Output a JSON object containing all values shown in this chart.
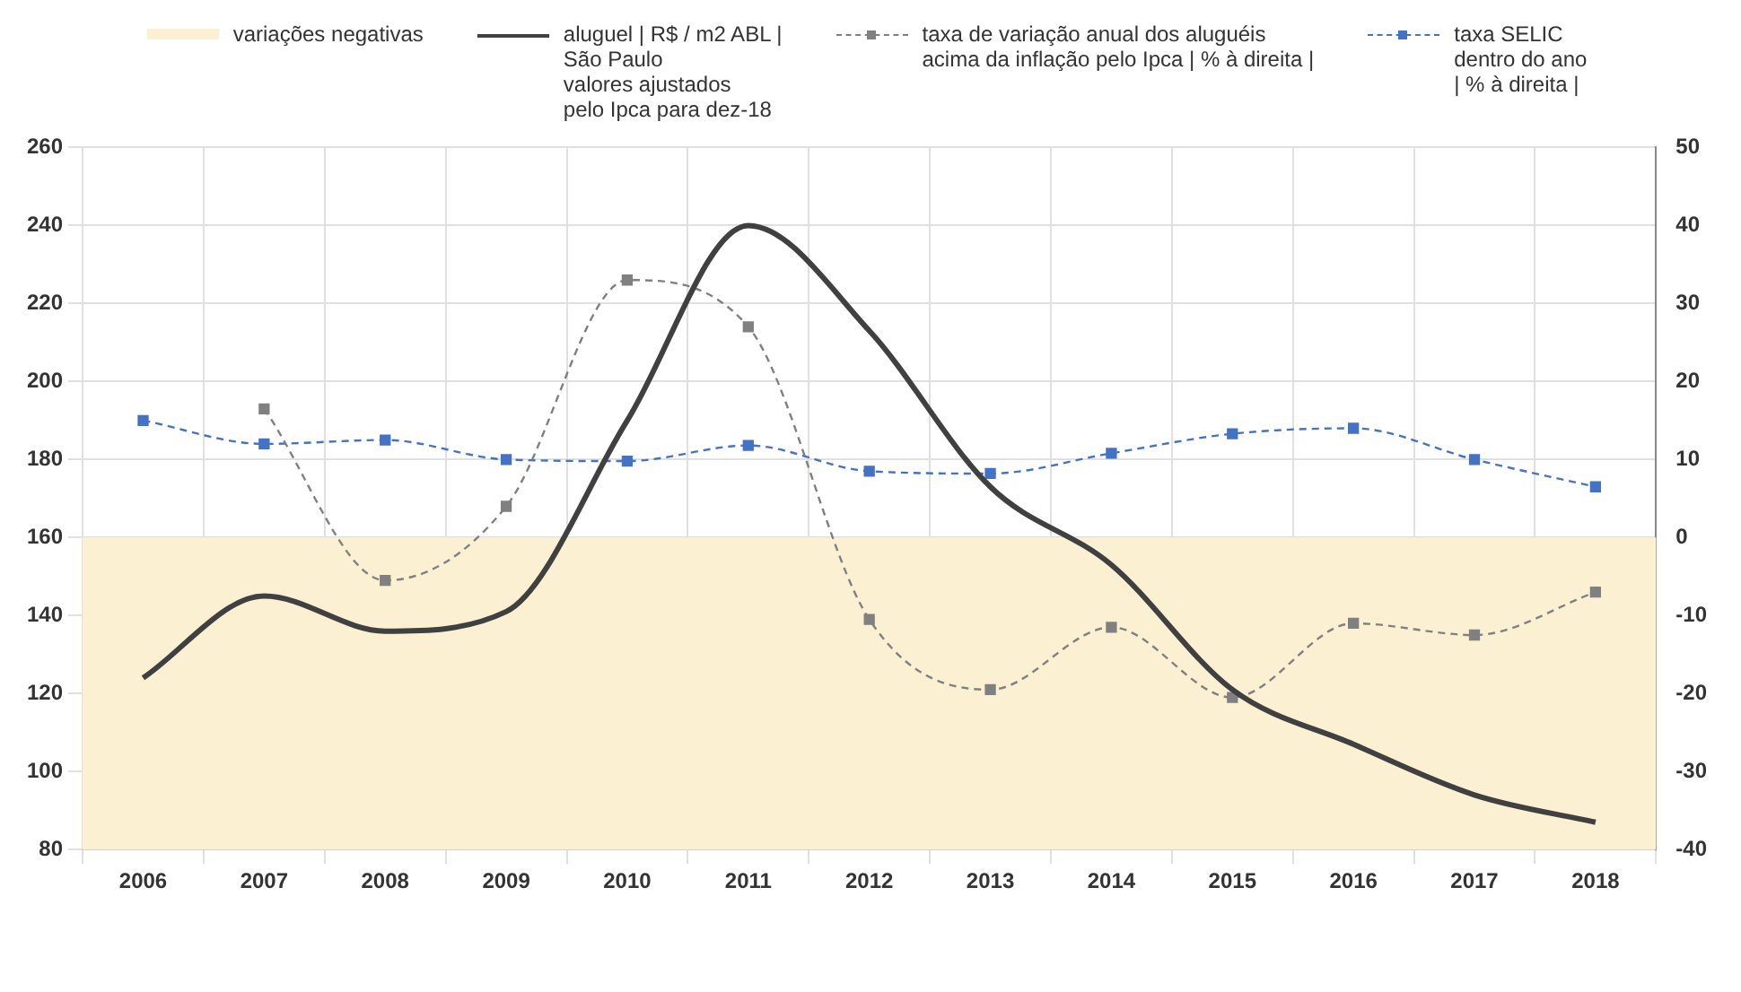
{
  "chart_data": {
    "type": "line",
    "categories": [
      "2006",
      "2007",
      "2008",
      "2009",
      "2010",
      "2011",
      "2012",
      "2013",
      "2014",
      "2015",
      "2016",
      "2017",
      "2018"
    ],
    "series": [
      {
        "name": "aluguel | R$ / m2 ABL |\nSão Paulo\nvalores ajustados\npelo Ipca para dez-18",
        "color": "#404040",
        "line_style": "solid",
        "marker": "none",
        "values": [
          124,
          145,
          136,
          141,
          190,
          240,
          213,
          173,
          153,
          121,
          107,
          94,
          87
        ]
      },
      {
        "name": "taxa de variação anual dos aluguéis\nacima da inflação pelo Ipca | % à direita |",
        "color": "#808080",
        "line_style": "dashed",
        "marker": "square",
        "axis": "y2",
        "values": [
          null,
          16.5,
          -5.5,
          4,
          33,
          27,
          -10.5,
          -19.5,
          -11.5,
          -20.5,
          -11,
          -12.5,
          -7
        ]
      },
      {
        "name": "taxa SELIC\ndentro do ano\n| % à direita |",
        "color": "#4472c4",
        "line_style": "dashed",
        "marker": "square",
        "axis": "y2",
        "values": [
          15,
          12,
          12.5,
          10,
          9.8,
          11.8,
          8.5,
          8.2,
          10.8,
          13.3,
          14,
          10,
          6.5
        ]
      }
    ],
    "bands": [
      {
        "axis": "y2",
        "from": -40,
        "to": 0,
        "label": "variações negativas",
        "color": "#fcf0d2"
      }
    ],
    "ylim": [
      80,
      260
    ],
    "yticks": [
      80,
      100,
      120,
      140,
      160,
      180,
      200,
      220,
      240,
      260
    ],
    "y2lim": [
      -40,
      50
    ],
    "y2ticks": [
      -40,
      -30,
      -20,
      -10,
      0,
      10,
      20,
      30,
      40,
      50
    ],
    "grid": true,
    "legend": "top"
  }
}
